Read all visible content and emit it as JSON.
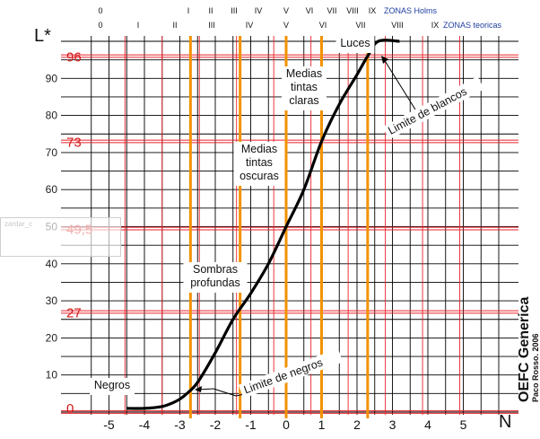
{
  "chart_data": {
    "type": "line",
    "title": "",
    "xlabel": "N",
    "ylabel": "L*",
    "xlim": [
      -5.5,
      5.8
    ],
    "ylim": [
      0,
      100
    ],
    "x_ticks": [
      -5,
      -4,
      -3,
      -2,
      -1,
      0,
      1,
      2,
      3,
      4,
      5
    ],
    "y_ticks": [
      10,
      20,
      30,
      40,
      50,
      60,
      70,
      80,
      90
    ],
    "series": [
      {
        "name": "",
        "x": [
          -4.5,
          -4.0,
          -3.5,
          -3.2,
          -3.0,
          -2.8,
          -2.5,
          -2.0,
          -1.5,
          -1.0,
          -0.5,
          0.0,
          0.5,
          1.0,
          1.5,
          2.0,
          2.3,
          2.6,
          3.2
        ],
        "y": [
          1,
          1,
          1.5,
          2.5,
          3.5,
          5,
          8,
          16,
          25,
          32,
          40,
          50,
          60,
          73,
          83,
          91,
          96,
          100,
          100
        ]
      }
    ],
    "red_lines_y": [
      0,
      27,
      49.5,
      73,
      96
    ],
    "red_labels": [
      "0",
      "27",
      "49,5",
      "73",
      "96"
    ],
    "orange_lines_x": [
      -2.7,
      -1.3,
      0.0,
      1.0,
      2.3
    ],
    "zones_holms": [
      "0",
      "I",
      "II",
      "III",
      "IV",
      "V",
      "VI",
      "VII",
      "VIII",
      "IX"
    ],
    "zones_holms_title": "ZONAS Holms",
    "zones_teoricas": [
      "0",
      "I",
      "II",
      "III",
      "IV",
      "V",
      "VI",
      "VII",
      "VIII",
      "IX"
    ],
    "zones_teoricas_title": "ZONAS teoricas",
    "annotations": {
      "negros": "Negros",
      "sombras": [
        "Sombras",
        "profundas"
      ],
      "medias_oscuras": [
        "Medias",
        "tintas",
        "oscuras"
      ],
      "medias_claras": [
        "Medias",
        "tintas",
        "claras"
      ],
      "luces": "Luces",
      "limite_blancos": "Limite de blancos",
      "limite_negros": "Limite de negros"
    },
    "credit": "OEFC Generica",
    "credit_small": "Paco Rosso. 2006",
    "colors": {
      "grid": "#000000",
      "red": "#e8232b",
      "orange": "#f39200",
      "curve": "#000000",
      "zone_title": "#1f3fa0"
    },
    "grid": true
  },
  "overlay": {
    "faded_text": "zardar_c"
  }
}
